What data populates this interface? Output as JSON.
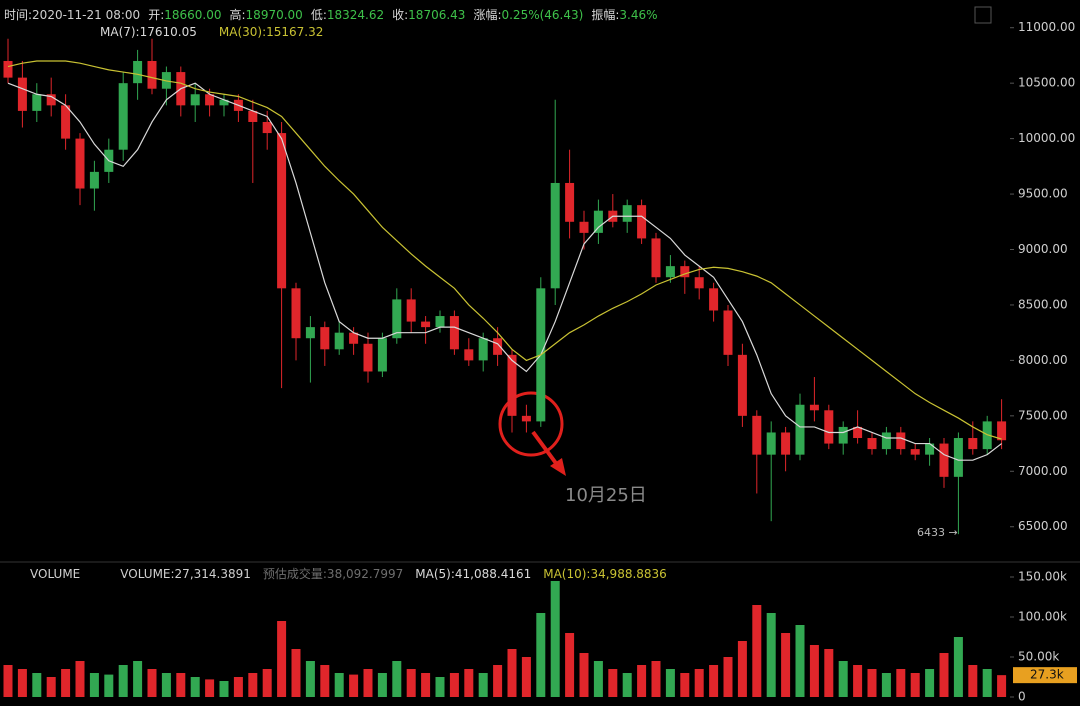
{
  "info_bar": [
    {
      "label": "时间:",
      "value": "2020-11-21 08:00"
    },
    {
      "label": "开:",
      "value": "18660.00"
    },
    {
      "label": "高:",
      "value": "18970.00"
    },
    {
      "label": "低:",
      "value": "18324.62"
    },
    {
      "label": "收:",
      "value": "18706.43"
    },
    {
      "label": "涨幅:",
      "value": "0.25%(46.43)"
    },
    {
      "label": "振幅:",
      "value": "3.46%"
    }
  ],
  "chart_data": [
    {
      "type": "candlestick",
      "up_color": "#32a852",
      "down_color": "#e0262b",
      "ylim": [
        6200,
        11250
      ],
      "yticks": [
        {
          "value": 6500,
          "label": "6500.00"
        },
        {
          "value": 7000,
          "label": "7000.00"
        },
        {
          "value": 7500,
          "label": "7500.00"
        },
        {
          "value": 8000,
          "label": "8000.00"
        },
        {
          "value": 8500,
          "label": "8500.00"
        },
        {
          "value": 9000,
          "label": "9000.00"
        },
        {
          "value": 9500,
          "label": "9500.00"
        },
        {
          "value": 10000,
          "label": "10000.00"
        },
        {
          "value": 10500,
          "label": "10500.00"
        },
        {
          "value": 11000,
          "label": "11000.00"
        }
      ],
      "open": [
        10700,
        10550,
        10250,
        10400,
        10300,
        10000,
        9550,
        9700,
        9900,
        10500,
        10700,
        10450,
        10600,
        10300,
        10400,
        10300,
        10350,
        10250,
        10150,
        10050,
        8650,
        8200,
        8300,
        8100,
        8250,
        8150,
        7900,
        8200,
        8550,
        8350,
        8300,
        8400,
        8100,
        8000,
        8200,
        8050,
        7500,
        7450,
        8650,
        9600,
        9250,
        9150,
        9350,
        9250,
        9400,
        9100,
        8750,
        8850,
        8750,
        8650,
        8450,
        8050,
        7500,
        7150,
        7350,
        7150,
        7600,
        7550,
        7250,
        7400,
        7300,
        7200,
        7350,
        7200,
        7150,
        7250,
        6950,
        7300,
        7200,
        7450
      ],
      "high": [
        10900,
        10700,
        10500,
        10550,
        10400,
        10050,
        9800,
        10000,
        10600,
        10800,
        10900,
        10650,
        10650,
        10500,
        10450,
        10400,
        10400,
        10350,
        10250,
        10150,
        8700,
        8400,
        8350,
        8350,
        8300,
        8250,
        8250,
        8650,
        8650,
        8400,
        8450,
        8450,
        8200,
        8250,
        8300,
        8100,
        7600,
        8750,
        10350,
        9900,
        9350,
        9450,
        9500,
        9450,
        9450,
        9150,
        8950,
        8900,
        8850,
        8700,
        8500,
        8150,
        7550,
        7450,
        7400,
        7700,
        7850,
        7600,
        7450,
        7550,
        7350,
        7400,
        7400,
        7250,
        7300,
        7300,
        7350,
        7450,
        7500,
        7650
      ],
      "low": [
        10500,
        10100,
        10150,
        10200,
        9900,
        9400,
        9350,
        9600,
        9800,
        10350,
        10400,
        10300,
        10200,
        10150,
        10200,
        10200,
        10150,
        9600,
        9900,
        7750,
        8000,
        7800,
        7950,
        8050,
        8050,
        7800,
        7850,
        8150,
        8250,
        8150,
        8250,
        8050,
        7950,
        7900,
        7950,
        7350,
        7350,
        7400,
        8500,
        9100,
        9000,
        9050,
        9200,
        9150,
        9050,
        8700,
        8700,
        8600,
        8550,
        8350,
        7950,
        7400,
        6800,
        6550,
        7000,
        7100,
        7450,
        7200,
        7150,
        7250,
        7150,
        7150,
        7150,
        7100,
        7050,
        6850,
        6433,
        7150,
        7150,
        7200
      ],
      "close": [
        10550,
        10250,
        10400,
        10300,
        10000,
        9550,
        9700,
        9900,
        10500,
        10700,
        10450,
        10600,
        10300,
        10400,
        10300,
        10350,
        10250,
        10150,
        10050,
        8650,
        8200,
        8300,
        8100,
        8250,
        8150,
        7900,
        8200,
        8550,
        8350,
        8300,
        8400,
        8100,
        8000,
        8200,
        8050,
        7500,
        7450,
        8650,
        9600,
        9250,
        9150,
        9350,
        9250,
        9400,
        9100,
        8750,
        8850,
        8750,
        8650,
        8450,
        8050,
        7500,
        7150,
        7350,
        7150,
        7600,
        7550,
        7250,
        7400,
        7300,
        7200,
        7350,
        7200,
        7150,
        7250,
        6950,
        7300,
        7200,
        7450,
        7280
      ],
      "overlays": [
        {
          "name": "MA(7):17610.05",
          "color": "#d9d9d9",
          "values": [
            10500,
            10450,
            10400,
            10380,
            10300,
            10150,
            9950,
            9800,
            9750,
            9900,
            10150,
            10350,
            10450,
            10500,
            10400,
            10350,
            10300,
            10250,
            10200,
            10000,
            9600,
            9150,
            8700,
            8350,
            8250,
            8200,
            8200,
            8250,
            8250,
            8250,
            8300,
            8300,
            8250,
            8200,
            8150,
            8000,
            7900,
            8050,
            8350,
            8700,
            9050,
            9200,
            9300,
            9300,
            9300,
            9200,
            9100,
            8950,
            8850,
            8750,
            8550,
            8350,
            8050,
            7700,
            7500,
            7400,
            7400,
            7350,
            7350,
            7400,
            7350,
            7300,
            7300,
            7250,
            7250,
            7150,
            7100,
            7100,
            7150,
            7250
          ]
        },
        {
          "name": "MA(30):15167.32",
          "color": "#c9c233",
          "values": [
            10650,
            10680,
            10700,
            10700,
            10700,
            10680,
            10650,
            10620,
            10600,
            10580,
            10550,
            10520,
            10500,
            10450,
            10420,
            10400,
            10380,
            10330,
            10280,
            10200,
            10050,
            9900,
            9750,
            9620,
            9500,
            9350,
            9200,
            9080,
            8960,
            8850,
            8750,
            8650,
            8500,
            8380,
            8250,
            8100,
            8000,
            8050,
            8150,
            8250,
            8320,
            8400,
            8470,
            8530,
            8600,
            8680,
            8730,
            8780,
            8820,
            8840,
            8830,
            8800,
            8760,
            8700,
            8600,
            8500,
            8400,
            8300,
            8200,
            8100,
            8000,
            7900,
            7800,
            7700,
            7620,
            7550,
            7480,
            7400,
            7330,
            7290
          ]
        }
      ],
      "annotation": "10月25日",
      "low_label": "6433 →"
    },
    {
      "type": "bar",
      "title": "VOLUME",
      "up_color": "#32a852",
      "down_color": "#e0262b",
      "ylim": [
        0,
        165000
      ],
      "yticks": [
        0,
        {
          "value": 50000,
          "label": "50.00k"
        },
        {
          "value": 100000,
          "label": "100.00k"
        },
        {
          "value": 150000,
          "label": "150.00k"
        }
      ],
      "legend": [
        {
          "text": "VOLUME:27,314.3891",
          "color": "#cfcfcf"
        },
        {
          "text": "预估成交量:38,092.7997",
          "color": "#6e6e6e"
        },
        {
          "text": "MA(5):41,088.4161",
          "color": "#d9d9d9"
        },
        {
          "text": "MA(10):34,988.8836",
          "color": "#c9c233"
        }
      ],
      "values": [
        40000,
        35000,
        30000,
        25000,
        35000,
        45000,
        30000,
        28000,
        40000,
        45000,
        35000,
        30000,
        30000,
        25000,
        22000,
        20000,
        25000,
        30000,
        35000,
        95000,
        60000,
        45000,
        40000,
        30000,
        28000,
        35000,
        30000,
        45000,
        35000,
        30000,
        25000,
        30000,
        35000,
        30000,
        40000,
        60000,
        50000,
        105000,
        145000,
        80000,
        55000,
        45000,
        35000,
        30000,
        40000,
        45000,
        35000,
        30000,
        35000,
        40000,
        50000,
        70000,
        115000,
        105000,
        80000,
        90000,
        65000,
        60000,
        45000,
        40000,
        35000,
        30000,
        35000,
        30000,
        35000,
        55000,
        75000,
        40000,
        35000,
        27314.3891
      ],
      "last_value_label": "27.3k"
    }
  ]
}
